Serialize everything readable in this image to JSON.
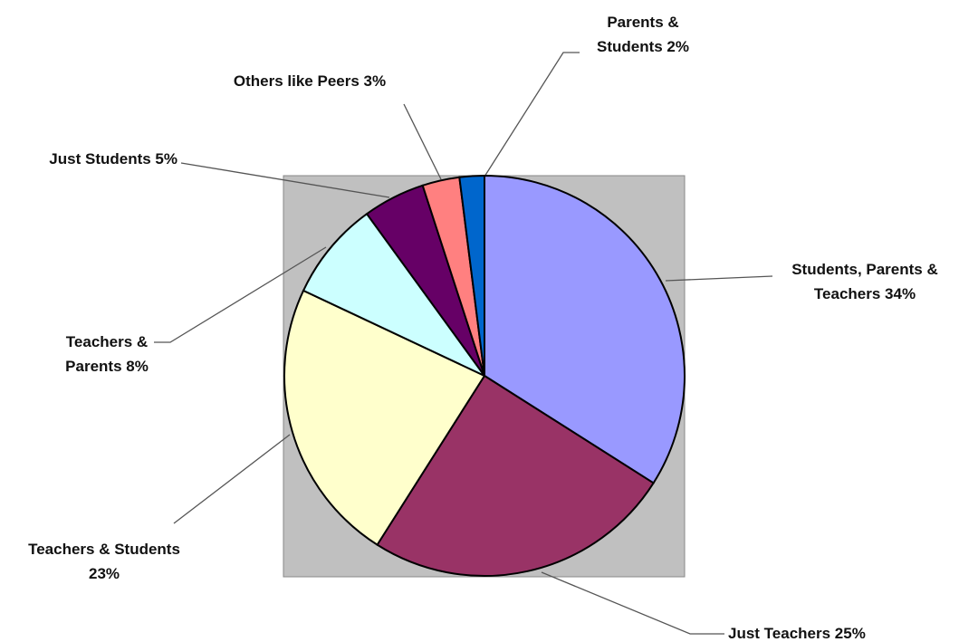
{
  "chart_data": {
    "type": "pie",
    "title": "",
    "slices": [
      {
        "label_lines": [
          "Students, Parents &",
          "Teachers 34%"
        ],
        "label": "Students, Parents & Teachers",
        "value": 34,
        "color": "#9999ff"
      },
      {
        "label_lines": [
          "Just Teachers 25%"
        ],
        "label": "Just Teachers",
        "value": 25,
        "color": "#993366"
      },
      {
        "label_lines": [
          "Teachers & Students",
          "23%"
        ],
        "label": "Teachers & Students",
        "value": 23,
        "color": "#ffffcc"
      },
      {
        "label_lines": [
          "Teachers &",
          "Parents 8%"
        ],
        "label": "Teachers & Parents",
        "value": 8,
        "color": "#ccffff"
      },
      {
        "label_lines": [
          "Just Students 5%"
        ],
        "label": "Just Students",
        "value": 5,
        "color": "#660066"
      },
      {
        "label_lines": [
          "Others like Peers 3%"
        ],
        "label": "Others like Peers",
        "value": 3,
        "color": "#ff8080"
      },
      {
        "label_lines": [
          "Parents &",
          "Students 2%"
        ],
        "label": "Parents & Students",
        "value": 2,
        "color": "#0066cc"
      }
    ],
    "plot_area_color": "#c0c0c0"
  }
}
